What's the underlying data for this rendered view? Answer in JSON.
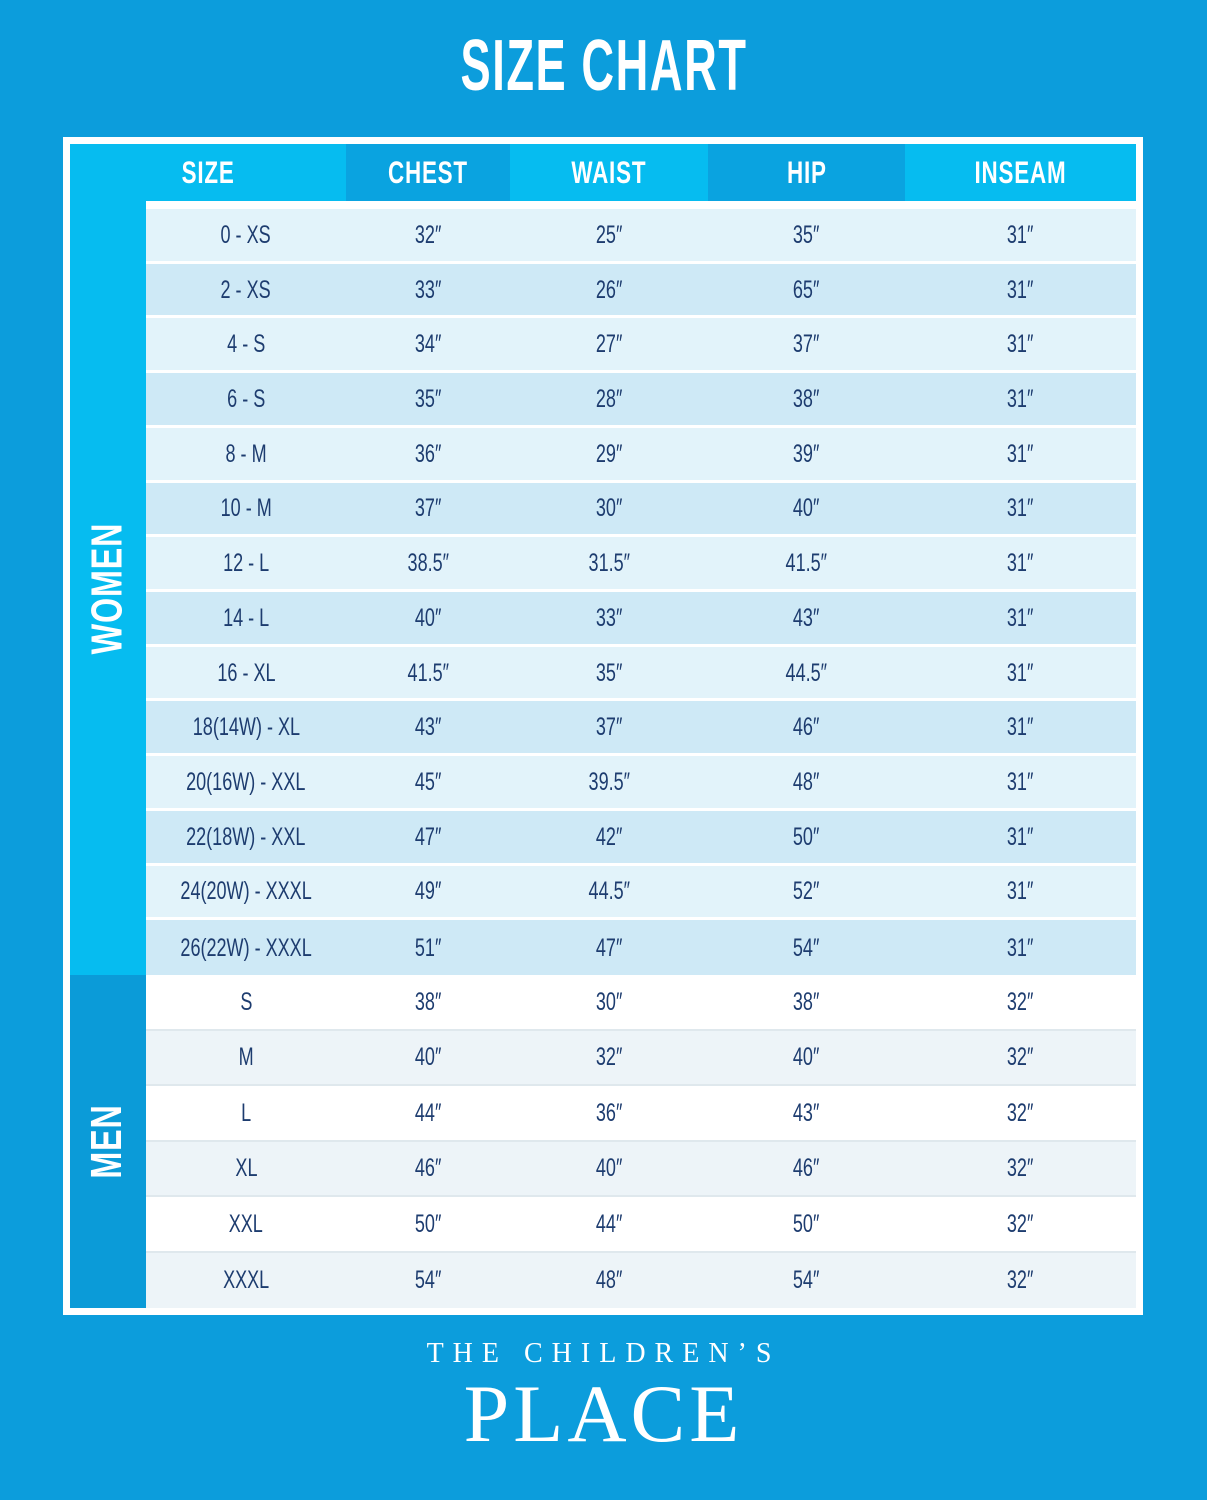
{
  "title": "SIZE CHART",
  "table": {
    "columns": [
      "SIZE",
      "CHEST",
      "WAIST",
      "HIP",
      "INSEAM"
    ],
    "sections": [
      {
        "label": "WOMEN",
        "rows": [
          [
            "0 - XS",
            "32″",
            "25″",
            "35″",
            "31″"
          ],
          [
            "2 - XS",
            "33″",
            "26″",
            "65″",
            "31″"
          ],
          [
            "4 - S",
            "34″",
            "27″",
            "37″",
            "31″"
          ],
          [
            "6 - S",
            "35″",
            "28″",
            "38″",
            "31″"
          ],
          [
            "8 - M",
            "36″",
            "29″",
            "39″",
            "31″"
          ],
          [
            "10 - M",
            "37″",
            "30″",
            "40″",
            "31″"
          ],
          [
            "12 - L",
            "38.5″",
            "31.5″",
            "41.5″",
            "31″"
          ],
          [
            "14 - L",
            "40″",
            "33″",
            "43″",
            "31″"
          ],
          [
            "16 - XL",
            "41.5″",
            "35″",
            "44.5″",
            "31″"
          ],
          [
            "18(14W) - XL",
            "43″",
            "37″",
            "46″",
            "31″"
          ],
          [
            "20(16W) - XXL",
            "45″",
            "39.5″",
            "48″",
            "31″"
          ],
          [
            "22(18W) - XXL",
            "47″",
            "42″",
            "50″",
            "31″"
          ],
          [
            "24(20W) - XXXL",
            "49″",
            "44.5″",
            "52″",
            "31″"
          ],
          [
            "26(22W) - XXXL",
            "51″",
            "47″",
            "54″",
            "31″"
          ]
        ]
      },
      {
        "label": "MEN",
        "rows": [
          [
            "S",
            "38″",
            "30″",
            "38″",
            "32″"
          ],
          [
            "M",
            "40″",
            "32″",
            "40″",
            "32″"
          ],
          [
            "L",
            "44″",
            "36″",
            "43″",
            "32″"
          ],
          [
            "XL",
            "46″",
            "40″",
            "46″",
            "32″"
          ],
          [
            "XXL",
            "50″",
            "44″",
            "50″",
            "32″"
          ],
          [
            "XXXL",
            "54″",
            "48″",
            "54″",
            "32″"
          ]
        ]
      }
    ]
  },
  "logo": {
    "line1": "THE CHILDREN’S",
    "line2": "PLACE"
  },
  "colors": {
    "background": "#0C9DDC",
    "header_light": "#06BCF0",
    "header_dark": "#0AA3E0",
    "men_sidebar": "#0B9BD8",
    "women_row_light": "#E2F3FA",
    "women_row_dark": "#CEE9F6",
    "men_row_light": "#FFFFFF",
    "men_row_dark": "#EDF4F8",
    "cell_text": "#1D3C6F"
  }
}
